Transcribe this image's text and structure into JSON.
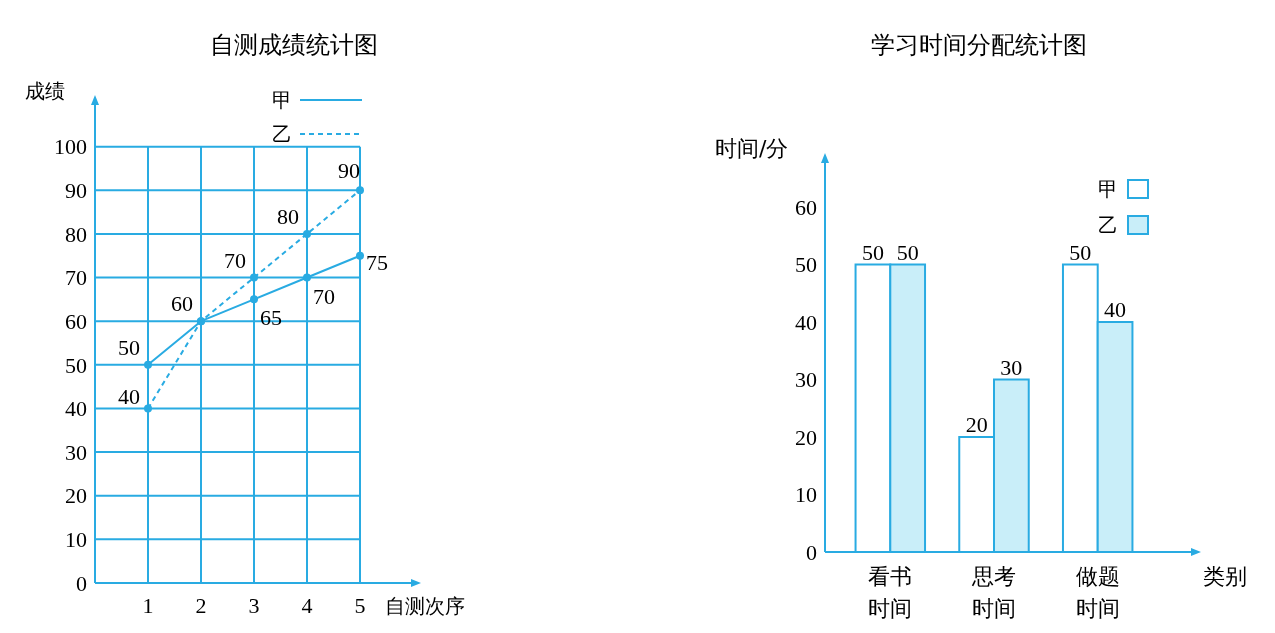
{
  "chart_data": [
    {
      "type": "line",
      "title": "自测成绩统计图",
      "xlabel": "自测次序",
      "ylabel": "成绩",
      "x": [
        1,
        2,
        3,
        4,
        5
      ],
      "xlim": [
        0,
        6
      ],
      "xticks": [
        1,
        2,
        3,
        4,
        5
      ],
      "ylim": [
        0,
        110
      ],
      "yticks": [
        0,
        10,
        20,
        30,
        40,
        50,
        60,
        70,
        80,
        90,
        100
      ],
      "grid": true,
      "legend": "top right",
      "marker": "circle",
      "series": [
        {
          "name": "甲",
          "color": "#29abe2",
          "line_style": "solid",
          "values": [
            50,
            60,
            65,
            70,
            75
          ],
          "value_labels": [
            "50",
            "60",
            "65",
            "70",
            "75"
          ]
        },
        {
          "name": "乙",
          "color": "#29abe2",
          "line_style": "dashed",
          "values": [
            40,
            60,
            70,
            80,
            90
          ],
          "value_labels": [
            "40",
            null,
            "70",
            "80",
            "90"
          ]
        }
      ]
    },
    {
      "type": "bar",
      "title": "学习时间分配统计图",
      "xlabel": "类别",
      "ylabel": "时间/分",
      "categories": [
        "看书时间",
        "思考时间",
        "做题时间"
      ],
      "ylim": [
        0,
        68
      ],
      "yticks": [
        0,
        10,
        20,
        30,
        40,
        50,
        60
      ],
      "grid": false,
      "legend": "top right",
      "data_labels": true,
      "series": [
        {
          "name": "甲",
          "color": "#ffffff",
          "values": [
            50,
            20,
            50
          ]
        },
        {
          "name": "乙",
          "color": "#c9eef9",
          "values": [
            50,
            30,
            40
          ]
        }
      ]
    }
  ]
}
